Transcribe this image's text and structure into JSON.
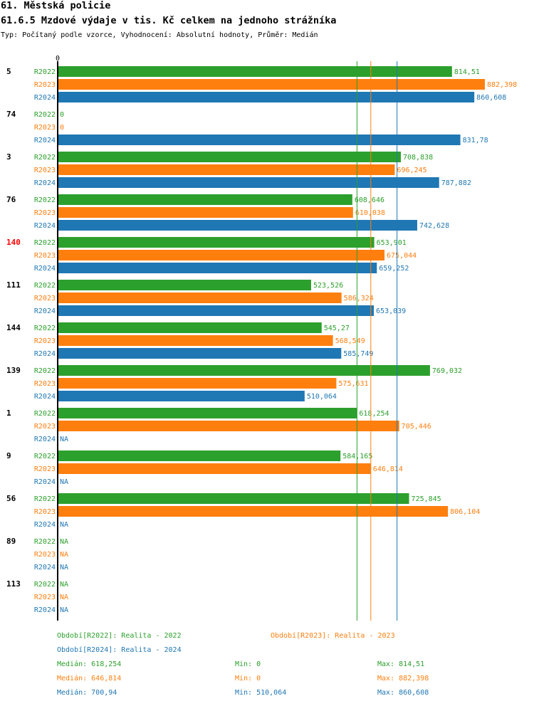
{
  "header": {
    "title": "61. Městská policie",
    "subtitle": "61.6.5 Mzdové výdaje v tis. Kč celkem na jednoho strážníka",
    "info": "Typ: Počítaný podle vzorce, Vyhodnocení: Absolutní hodnoty, Průměr: Medián"
  },
  "colors": {
    "R2022": "#2ca02c",
    "R2023": "#ff7f0e",
    "R2024": "#1f77b4",
    "highlight": "#ff0000"
  },
  "chart_data": {
    "type": "bar",
    "orientation": "horizontal",
    "zero_label": "0",
    "xlim": [
      0,
      882.398
    ],
    "series_names": [
      "R2022",
      "R2023",
      "R2024"
    ],
    "groups": [
      {
        "id": "5",
        "highlight": false,
        "values": [
          814.51,
          882.398,
          860.608
        ],
        "labels": [
          "814,51",
          "882,398",
          "860,608"
        ]
      },
      {
        "id": "74",
        "highlight": false,
        "values": [
          0,
          0,
          831.78
        ],
        "labels": [
          "0",
          "0",
          "831,78"
        ]
      },
      {
        "id": "3",
        "highlight": false,
        "values": [
          708.838,
          696.245,
          787.882
        ],
        "labels": [
          "708,838",
          "696,245",
          "787,882"
        ]
      },
      {
        "id": "76",
        "highlight": false,
        "values": [
          608.646,
          610.038,
          742.628
        ],
        "labels": [
          "608,646",
          "610,038",
          "742,628"
        ]
      },
      {
        "id": "140",
        "highlight": true,
        "values": [
          653.901,
          675.044,
          659.252
        ],
        "labels": [
          "653,901",
          "675,044",
          "659,252"
        ]
      },
      {
        "id": "111",
        "highlight": false,
        "values": [
          523.526,
          586.324,
          653.039
        ],
        "labels": [
          "523,526",
          "586,324",
          "653,039"
        ]
      },
      {
        "id": "144",
        "highlight": false,
        "values": [
          545.27,
          568.549,
          585.749
        ],
        "labels": [
          "545,27",
          "568,549",
          "585,749"
        ]
      },
      {
        "id": "139",
        "highlight": false,
        "values": [
          769.032,
          575.631,
          510.064
        ],
        "labels": [
          "769,032",
          "575,631",
          "510,064"
        ]
      },
      {
        "id": "1",
        "highlight": false,
        "values": [
          618.254,
          705.446,
          null
        ],
        "labels": [
          "618,254",
          "705,446",
          "NA"
        ]
      },
      {
        "id": "9",
        "highlight": false,
        "values": [
          584.165,
          646.814,
          null
        ],
        "labels": [
          "584,165",
          "646,814",
          "NA"
        ]
      },
      {
        "id": "56",
        "highlight": false,
        "values": [
          725.845,
          806.104,
          null
        ],
        "labels": [
          "725,845",
          "806,104",
          "NA"
        ]
      },
      {
        "id": "89",
        "highlight": false,
        "values": [
          null,
          null,
          null
        ],
        "labels": [
          "NA",
          "NA",
          "NA"
        ]
      },
      {
        "id": "113",
        "highlight": false,
        "values": [
          null,
          null,
          null
        ],
        "labels": [
          "NA",
          "NA",
          "NA"
        ]
      }
    ],
    "median_lines": [
      618.254,
      646.814,
      700.94
    ]
  },
  "legend": {
    "period_2022": "Období[R2022]: Realita - 2022",
    "period_2023": "Období[R2023]: Realita - 2023",
    "period_2024": "Období[R2024]: Realita - 2024",
    "stats": [
      {
        "median": "Medián: 618,254",
        "min": "Min: 0",
        "max": "Max: 814,51"
      },
      {
        "median": "Medián: 646,814",
        "min": "Min: 0",
        "max": "Max: 882,398"
      },
      {
        "median": "Medián: 700,94",
        "min": "Min: 510,064",
        "max": "Max: 860,608"
      }
    ]
  }
}
